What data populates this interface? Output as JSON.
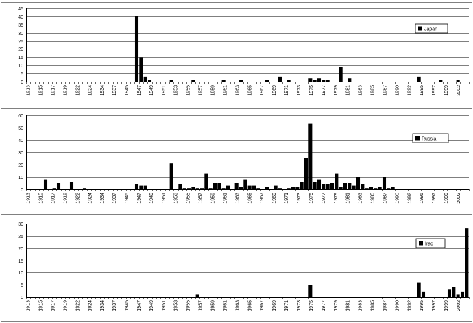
{
  "chart_data": [
    {
      "type": "bar",
      "legend": "Japan",
      "legend_position": "top-right",
      "ylim": [
        0,
        45
      ],
      "yticks": [
        0,
        5,
        10,
        15,
        20,
        25,
        30,
        35,
        40,
        45
      ],
      "grid": true,
      "categories": [
        "1913",
        "1915",
        "1917",
        "1919",
        "1922",
        "1924",
        "1934",
        "1937",
        "1945",
        "1947",
        "1949",
        "1951",
        "1953",
        "1955",
        "1957",
        "1959",
        "1961",
        "1963",
        "1965",
        "1967",
        "1969",
        "1971",
        "1973",
        "1975",
        "1977",
        "1979",
        "1981",
        "1983",
        "1985",
        "1987",
        "1990",
        "1992",
        "1995",
        "1997",
        "1999",
        "2002"
      ],
      "bars": [
        {
          "slot": 25,
          "value": 40
        },
        {
          "slot": 26,
          "value": 15
        },
        {
          "slot": 27,
          "value": 3
        },
        {
          "slot": 28,
          "value": 1
        },
        {
          "slot": 33,
          "value": 1
        },
        {
          "slot": 38,
          "value": 1
        },
        {
          "slot": 45,
          "value": 1
        },
        {
          "slot": 49,
          "value": 1
        },
        {
          "slot": 55,
          "value": 1
        },
        {
          "slot": 58,
          "value": 3
        },
        {
          "slot": 60,
          "value": 1
        },
        {
          "slot": 65,
          "value": 2
        },
        {
          "slot": 66,
          "value": 1
        },
        {
          "slot": 67,
          "value": 2
        },
        {
          "slot": 68,
          "value": 1
        },
        {
          "slot": 69,
          "value": 1
        },
        {
          "slot": 72,
          "value": 9
        },
        {
          "slot": 74,
          "value": 2
        },
        {
          "slot": 90,
          "value": 3
        },
        {
          "slot": 95,
          "value": 1
        },
        {
          "slot": 99,
          "value": 1
        }
      ]
    },
    {
      "type": "bar",
      "legend": "Russia",
      "legend_position": "top-right",
      "ylim": [
        0,
        60
      ],
      "yticks": [
        0,
        10,
        20,
        30,
        40,
        50,
        60
      ],
      "grid": true,
      "categories": [
        "1913",
        "1915",
        "1917",
        "1919",
        "1922",
        "1924",
        "1934",
        "1937",
        "1945",
        "1947",
        "1949",
        "1951",
        "1953",
        "1955",
        "1957",
        "1959",
        "1961",
        "1963",
        "1965",
        "1967",
        "1969",
        "1971",
        "1973",
        "1975",
        "1977",
        "1979",
        "1981",
        "1983",
        "1985",
        "1987",
        "1990",
        "1992",
        "1995",
        "1997",
        "1999",
        "2002"
      ],
      "bars": [
        {
          "slot": 4,
          "value": 8
        },
        {
          "slot": 6,
          "value": 1
        },
        {
          "slot": 7,
          "value": 5
        },
        {
          "slot": 10,
          "value": 6
        },
        {
          "slot": 13,
          "value": 1
        },
        {
          "slot": 25,
          "value": 4
        },
        {
          "slot": 26,
          "value": 3
        },
        {
          "slot": 27,
          "value": 3
        },
        {
          "slot": 33,
          "value": 21
        },
        {
          "slot": 35,
          "value": 4
        },
        {
          "slot": 36,
          "value": 1
        },
        {
          "slot": 37,
          "value": 1
        },
        {
          "slot": 38,
          "value": 2
        },
        {
          "slot": 39,
          "value": 1
        },
        {
          "slot": 40,
          "value": 1
        },
        {
          "slot": 41,
          "value": 13
        },
        {
          "slot": 42,
          "value": 1
        },
        {
          "slot": 43,
          "value": 5
        },
        {
          "slot": 44,
          "value": 5
        },
        {
          "slot": 45,
          "value": 1
        },
        {
          "slot": 46,
          "value": 3
        },
        {
          "slot": 48,
          "value": 5
        },
        {
          "slot": 49,
          "value": 2
        },
        {
          "slot": 50,
          "value": 8
        },
        {
          "slot": 51,
          "value": 3
        },
        {
          "slot": 52,
          "value": 3
        },
        {
          "slot": 53,
          "value": 1
        },
        {
          "slot": 55,
          "value": 2
        },
        {
          "slot": 57,
          "value": 3
        },
        {
          "slot": 58,
          "value": 1
        },
        {
          "slot": 60,
          "value": 1
        },
        {
          "slot": 61,
          "value": 2
        },
        {
          "slot": 62,
          "value": 2
        },
        {
          "slot": 63,
          "value": 6
        },
        {
          "slot": 64,
          "value": 25
        },
        {
          "slot": 65,
          "value": 53
        },
        {
          "slot": 66,
          "value": 6
        },
        {
          "slot": 67,
          "value": 8
        },
        {
          "slot": 68,
          "value": 4
        },
        {
          "slot": 69,
          "value": 4
        },
        {
          "slot": 70,
          "value": 5
        },
        {
          "slot": 71,
          "value": 13
        },
        {
          "slot": 72,
          "value": 2
        },
        {
          "slot": 73,
          "value": 5
        },
        {
          "slot": 74,
          "value": 5
        },
        {
          "slot": 75,
          "value": 3
        },
        {
          "slot": 76,
          "value": 10
        },
        {
          "slot": 77,
          "value": 4
        },
        {
          "slot": 78,
          "value": 1
        },
        {
          "slot": 79,
          "value": 2
        },
        {
          "slot": 80,
          "value": 1
        },
        {
          "slot": 81,
          "value": 2
        },
        {
          "slot": 82,
          "value": 10
        },
        {
          "slot": 83,
          "value": 1
        },
        {
          "slot": 84,
          "value": 2
        }
      ]
    },
    {
      "type": "bar",
      "legend": "Iraq",
      "legend_position": "top-right",
      "ylim": [
        0,
        30
      ],
      "yticks": [
        0,
        5,
        10,
        15,
        20,
        25,
        30
      ],
      "grid": true,
      "categories": [
        "1913",
        "1915",
        "1917",
        "1919",
        "1922",
        "1924",
        "1934",
        "1937",
        "1945",
        "1947",
        "1949",
        "1951",
        "1953",
        "1955",
        "1957",
        "1959",
        "1961",
        "1963",
        "1965",
        "1967",
        "1969",
        "1971",
        "1973",
        "1975",
        "1977",
        "1979",
        "1981",
        "1983",
        "1985",
        "1987",
        "1990",
        "1992",
        "1995",
        "1997",
        "1999",
        "2002"
      ],
      "bars": [
        {
          "slot": 39,
          "value": 1
        },
        {
          "slot": 65,
          "value": 5
        },
        {
          "slot": 90,
          "value": 6
        },
        {
          "slot": 91,
          "value": 2
        },
        {
          "slot": 97,
          "value": 3
        },
        {
          "slot": 98,
          "value": 4
        },
        {
          "slot": 99,
          "value": 1
        },
        {
          "slot": 100,
          "value": 2
        },
        {
          "slot": 101,
          "value": 28
        }
      ]
    }
  ],
  "colors": {
    "bar": "#000000",
    "grid": "#000000",
    "frame": "#808080"
  }
}
